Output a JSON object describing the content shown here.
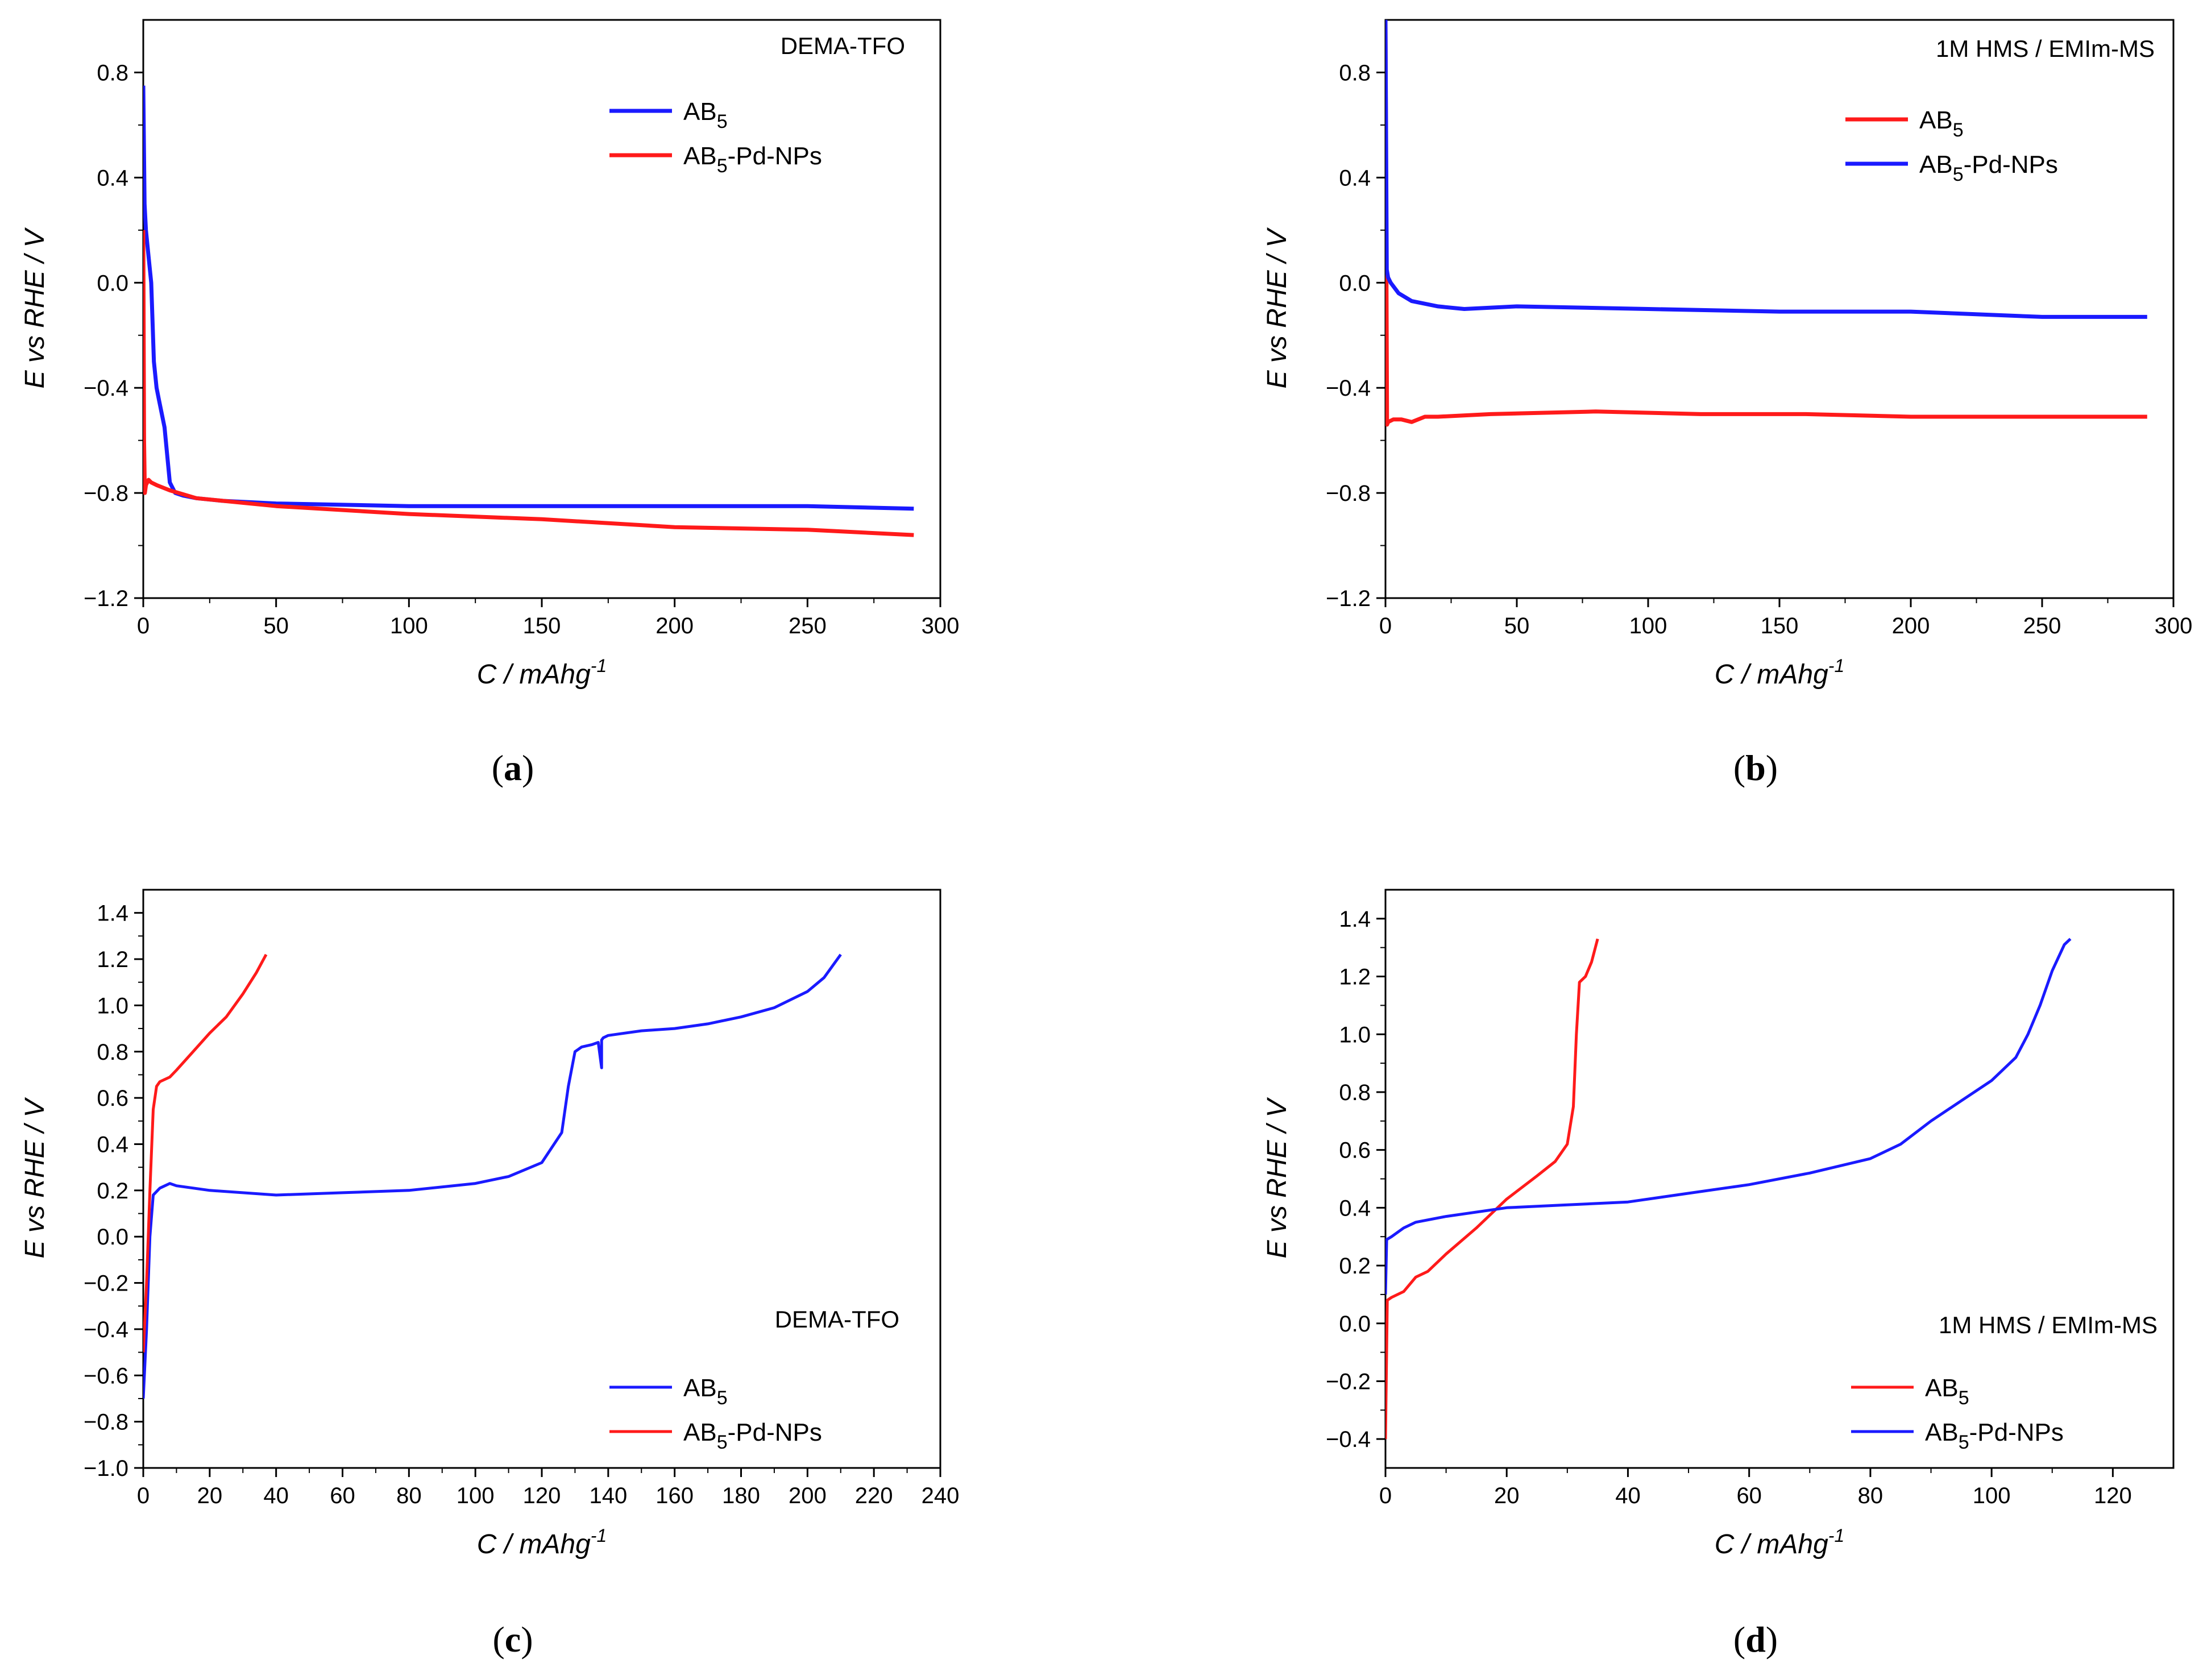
{
  "chart_data": [
    {
      "panel": "a",
      "type": "line",
      "caption": "a",
      "annotation": "DEMA-TFO",
      "xlabel": "C / mAhg",
      "xlabel_sup": "-1",
      "ylabel": "E vs RHE / V",
      "xlim": [
        0,
        300
      ],
      "ylim": [
        -1.2,
        1.0
      ],
      "xticks": [
        0,
        50,
        100,
        150,
        200,
        250,
        300
      ],
      "yticks": [
        -1.2,
        -0.8,
        -0.4,
        0.0,
        0.4,
        0.8
      ],
      "ytick_labels": [
        "−1.2",
        "−0.8",
        "−0.4",
        "0.0",
        "0.4",
        "0.8"
      ],
      "legend": [
        {
          "name": "AB",
          "sub": "5",
          "suffix": "",
          "color": "#1a1aff"
        },
        {
          "name": "AB",
          "sub": "5",
          "suffix": "-Pd-NPs",
          "color": "#ff1a1a"
        }
      ],
      "series": [
        {
          "name": "AB5",
          "color": "#1a1aff",
          "x": [
            0,
            0.5,
            1,
            2,
            3,
            4,
            5,
            6,
            8,
            10,
            12,
            15,
            20,
            30,
            50,
            100,
            150,
            200,
            250,
            290
          ],
          "y": [
            0.75,
            0.3,
            0.2,
            0.1,
            0.0,
            -0.3,
            -0.4,
            -0.45,
            -0.55,
            -0.76,
            -0.8,
            -0.81,
            -0.82,
            -0.83,
            -0.84,
            -0.85,
            -0.85,
            -0.85,
            -0.85,
            -0.86
          ]
        },
        {
          "name": "AB5-Pd-NPs",
          "color": "#ff1a1a",
          "x": [
            0,
            0.3,
            0.6,
            1,
            2,
            3,
            5,
            10,
            20,
            50,
            100,
            150,
            200,
            250,
            290
          ],
          "y": [
            0.2,
            -0.6,
            -0.8,
            -0.77,
            -0.75,
            -0.76,
            -0.77,
            -0.79,
            -0.82,
            -0.85,
            -0.88,
            -0.9,
            -0.93,
            -0.94,
            -0.96
          ]
        }
      ]
    },
    {
      "panel": "b",
      "type": "line",
      "caption": "b",
      "annotation": "1M HMS / EMIm-MS",
      "xlabel": "C / mAhg",
      "xlabel_sup": "-1",
      "ylabel": "E vs RHE / V",
      "xlim": [
        0,
        300
      ],
      "ylim": [
        -1.2,
        1.0
      ],
      "xticks": [
        0,
        50,
        100,
        150,
        200,
        250,
        300
      ],
      "yticks": [
        -1.2,
        -0.8,
        -0.4,
        0.0,
        0.4,
        0.8
      ],
      "ytick_labels": [
        "−1.2",
        "−0.8",
        "−0.4",
        "0.0",
        "0.4",
        "0.8"
      ],
      "legend": [
        {
          "name": "AB",
          "sub": "5",
          "suffix": "",
          "color": "#ff1a1a"
        },
        {
          "name": "AB",
          "sub": "5",
          "suffix": "-Pd-NPs",
          "color": "#1a1aff"
        }
      ],
      "series": [
        {
          "name": "AB5",
          "color": "#ff1a1a",
          "x": [
            0,
            0.3,
            0.6,
            1,
            3,
            6,
            10,
            15,
            20,
            40,
            80,
            120,
            160,
            200,
            250,
            290
          ],
          "y": [
            1.0,
            0.2,
            -0.54,
            -0.53,
            -0.52,
            -0.52,
            -0.53,
            -0.51,
            -0.51,
            -0.5,
            -0.49,
            -0.5,
            -0.5,
            -0.51,
            -0.51,
            -0.51
          ]
        },
        {
          "name": "AB5-Pd-NPs",
          "color": "#1a1aff",
          "x": [
            0,
            0.5,
            1,
            2,
            5,
            10,
            20,
            30,
            50,
            100,
            150,
            200,
            250,
            290
          ],
          "y": [
            1.0,
            0.05,
            0.02,
            0.0,
            -0.04,
            -0.07,
            -0.09,
            -0.1,
            -0.09,
            -0.1,
            -0.11,
            -0.11,
            -0.13,
            -0.13
          ]
        }
      ]
    },
    {
      "panel": "c",
      "type": "line",
      "caption": "c",
      "annotation": "DEMA-TFO",
      "xlabel": "C / mAhg",
      "xlabel_sup": "-1",
      "ylabel": "E vs RHE / V",
      "xlim": [
        0,
        240
      ],
      "ylim": [
        -1.0,
        1.5
      ],
      "xticks": [
        0,
        20,
        40,
        60,
        80,
        100,
        120,
        140,
        160,
        180,
        200,
        220,
        240
      ],
      "yticks": [
        -1.0,
        -0.8,
        -0.6,
        -0.4,
        -0.2,
        0.0,
        0.2,
        0.4,
        0.6,
        0.8,
        1.0,
        1.2,
        1.4
      ],
      "ytick_labels": [
        "−1.0",
        "−0.8",
        "−0.6",
        "−0.4",
        "−0.2",
        "0.0",
        "0.2",
        "0.4",
        "0.6",
        "0.8",
        "1.0",
        "1.2",
        "1.4"
      ],
      "legend": [
        {
          "name": "AB",
          "sub": "5",
          "suffix": "",
          "color": "#1a1aff"
        },
        {
          "name": "AB",
          "sub": "5",
          "suffix": "-Pd-NPs",
          "color": "#ff1a1a"
        }
      ],
      "series": [
        {
          "name": "AB5",
          "color": "#1a1aff",
          "x": [
            0,
            1,
            2,
            3,
            5,
            8,
            10,
            20,
            40,
            60,
            80,
            100,
            110,
            120,
            126,
            128,
            130,
            132,
            135,
            137,
            138,
            138,
            138.5,
            140,
            145,
            150,
            160,
            170,
            180,
            190,
            200,
            205,
            210
          ],
          "y": [
            -0.7,
            -0.4,
            0.0,
            0.18,
            0.21,
            0.23,
            0.22,
            0.2,
            0.18,
            0.19,
            0.2,
            0.23,
            0.26,
            0.32,
            0.45,
            0.65,
            0.8,
            0.82,
            0.83,
            0.84,
            0.73,
            0.85,
            0.86,
            0.87,
            0.88,
            0.89,
            0.9,
            0.92,
            0.95,
            0.99,
            1.06,
            1.12,
            1.22
          ]
        },
        {
          "name": "AB5-Pd-NPs",
          "color": "#ff1a1a",
          "x": [
            0,
            1,
            2,
            3,
            4,
            5,
            8,
            10,
            15,
            20,
            25,
            30,
            34,
            37
          ],
          "y": [
            -0.5,
            -0.2,
            0.2,
            0.55,
            0.65,
            0.67,
            0.69,
            0.72,
            0.8,
            0.88,
            0.95,
            1.05,
            1.14,
            1.22
          ]
        }
      ]
    },
    {
      "panel": "d",
      "type": "line",
      "caption": "d",
      "annotation": "1M HMS / EMIm-MS",
      "xlabel": "C / mAhg",
      "xlabel_sup": "-1",
      "ylabel": "E vs RHE / V",
      "xlim": [
        0,
        130
      ],
      "ylim": [
        -0.5,
        1.5
      ],
      "xticks": [
        0,
        20,
        40,
        60,
        80,
        100,
        120
      ],
      "yticks": [
        -0.4,
        -0.2,
        0.0,
        0.2,
        0.4,
        0.6,
        0.8,
        1.0,
        1.2,
        1.4
      ],
      "ytick_labels": [
        "−0.4",
        "−0.2",
        "0.0",
        "0.2",
        "0.4",
        "0.6",
        "0.8",
        "1.0",
        "1.2",
        "1.4"
      ],
      "legend": [
        {
          "name": "AB",
          "sub": "5",
          "suffix": "",
          "color": "#ff1a1a"
        },
        {
          "name": "AB",
          "sub": "5",
          "suffix": "-Pd-NPs",
          "color": "#1a1aff"
        }
      ],
      "series": [
        {
          "name": "AB5",
          "color": "#ff1a1a",
          "x": [
            0,
            0.3,
            1,
            3,
            5,
            7,
            10,
            15,
            20,
            25,
            28,
            30,
            31,
            31.5,
            32,
            33,
            34,
            35
          ],
          "y": [
            -0.4,
            0.08,
            0.09,
            0.11,
            0.16,
            0.18,
            0.24,
            0.33,
            0.43,
            0.51,
            0.56,
            0.62,
            0.75,
            1.0,
            1.18,
            1.2,
            1.25,
            1.33
          ]
        },
        {
          "name": "AB5-Pd-NPs",
          "color": "#1a1aff",
          "x": [
            0,
            0.2,
            1,
            3,
            5,
            10,
            20,
            30,
            40,
            50,
            60,
            70,
            80,
            85,
            90,
            95,
            100,
            104,
            106,
            108,
            110,
            112,
            113
          ],
          "y": [
            0.1,
            0.29,
            0.3,
            0.33,
            0.35,
            0.37,
            0.4,
            0.41,
            0.42,
            0.45,
            0.48,
            0.52,
            0.57,
            0.62,
            0.7,
            0.77,
            0.84,
            0.92,
            1.0,
            1.1,
            1.22,
            1.31,
            1.33
          ]
        }
      ]
    }
  ]
}
